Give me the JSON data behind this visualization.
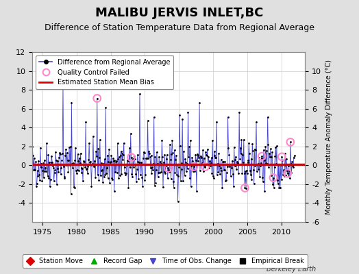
{
  "title": "MALIBU JERVIS INLET,BC",
  "subtitle": "Difference of Station Temperature Data from Regional Average",
  "ylabel_right": "Monthly Temperature Anomaly Difference (°C)",
  "xlim": [
    1973.5,
    2013.5
  ],
  "ylim_left": [
    -6,
    12
  ],
  "ylim_right": [
    -6,
    12
  ],
  "yticks_left": [
    -4,
    -2,
    0,
    2,
    4,
    6,
    8,
    10,
    12
  ],
  "yticks_right": [
    -6,
    -4,
    -2,
    0,
    2,
    4,
    6,
    8,
    10
  ],
  "xticks": [
    1975,
    1980,
    1985,
    1990,
    1995,
    2000,
    2005,
    2010
  ],
  "mean_bias": 0.1,
  "line_color": "#4444cc",
  "dot_color": "#000000",
  "bias_color": "#dd0000",
  "qc_color": "#ff88cc",
  "background_color": "#e0e0e0",
  "plot_bg_color": "#ffffff",
  "title_fontsize": 13,
  "subtitle_fontsize": 9,
  "watermark": "Berkeley Earth",
  "seed": 42,
  "n_months": 468,
  "start_year": 1973,
  "qc_indices": [
    120,
    180,
    245,
    290,
    310,
    380,
    410,
    430,
    445,
    455,
    460
  ],
  "spike_positions": [
    60,
    75,
    100,
    120,
    135,
    195,
    220,
    265,
    270,
    280,
    300,
    330,
    350,
    370,
    400,
    420
  ],
  "spike_values": [
    8.5,
    6.5,
    4.5,
    7.0,
    6.0,
    7.5,
    5.0,
    5.2,
    4.8,
    5.5,
    6.5,
    4.5,
    5.0,
    5.5,
    4.5,
    5.0
  ],
  "neg_spike_positions": [
    80,
    150,
    175,
    200,
    255,
    295,
    340,
    360,
    380,
    415,
    440
  ],
  "neg_spike_values": [
    -2.5,
    -2.8,
    -2.5,
    -2.3,
    -2.5,
    -2.8,
    -2.5,
    -2.3,
    -2.5,
    -2.8,
    -2.5
  ],
  "legend2_labels": [
    "Station Move",
    "Record Gap",
    "Time of Obs. Change",
    "Empirical Break"
  ],
  "legend2_colors": [
    "#dd0000",
    "#00aa00",
    "#4444cc",
    "#000000"
  ],
  "legend2_markers": [
    "D",
    "^",
    "v",
    "s"
  ]
}
